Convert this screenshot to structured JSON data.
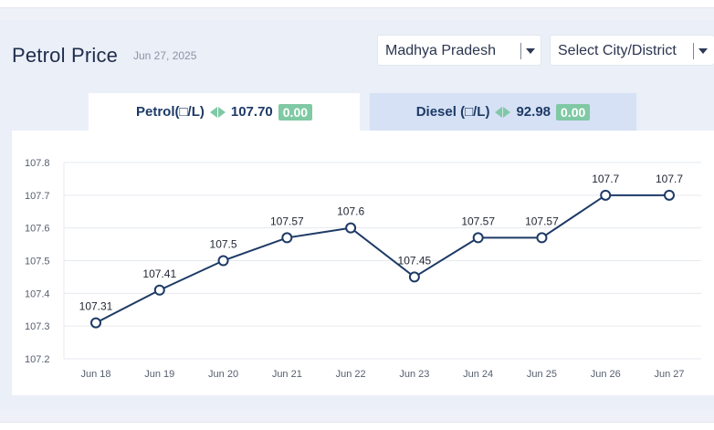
{
  "header": {
    "title": "Petrol Price",
    "date": "Jun 27, 2025"
  },
  "filters": {
    "state_selected": "Madhya Pradesh",
    "city_placeholder": "Select City/District"
  },
  "tabs": [
    {
      "label": "Petrol(□/L)",
      "price": "107.70",
      "change": "0.00",
      "active": true
    },
    {
      "label": "Diesel (□/L)",
      "price": "92.98",
      "change": "0.00",
      "active": false
    }
  ],
  "colors": {
    "accent": "#1d3a66",
    "change_badge": "#7fc9a4",
    "line": "#1d3a66"
  },
  "chart_data": {
    "type": "line",
    "categories": [
      "Jun 18",
      "Jun 19",
      "Jun 20",
      "Jun 21",
      "Jun 22",
      "Jun 23",
      "Jun 24",
      "Jun 25",
      "Jun 26",
      "Jun 27"
    ],
    "values": [
      107.31,
      107.41,
      107.5,
      107.57,
      107.6,
      107.45,
      107.57,
      107.57,
      107.7,
      107.7
    ],
    "data_labels": [
      "107.31",
      "107.41",
      "107.5",
      "107.57",
      "107.6",
      "107.45",
      "107.57",
      "107.57",
      "107.7",
      "107.7"
    ],
    "y_ticks": [
      "107.2",
      "107.3",
      "107.4",
      "107.5",
      "107.6",
      "107.7",
      "107.8"
    ],
    "ylim": [
      107.2,
      107.8
    ],
    "grid": true,
    "title": "",
    "xlabel": "",
    "ylabel": ""
  }
}
